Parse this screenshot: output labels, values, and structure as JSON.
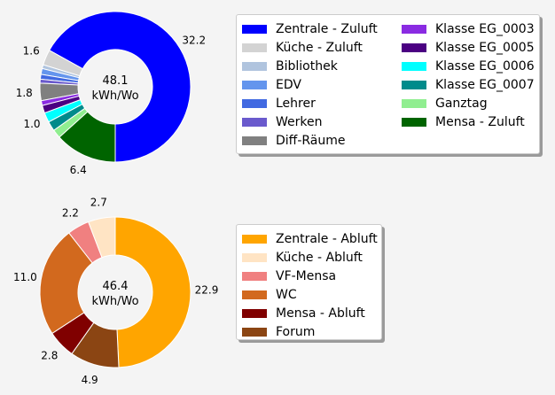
{
  "chart_data": [
    {
      "type": "pie",
      "donut": true,
      "center_value": "48.1",
      "center_unit": "kWh/Wo",
      "start": "bottom",
      "direction": "counterclockwise",
      "slices": [
        {
          "name": "Zentrale - Zuluft",
          "value": 32.2,
          "color": "#0000ff",
          "label": "32.2"
        },
        {
          "name": "Küche - Zuluft",
          "value": 1.6,
          "color": "#d3d3d3",
          "label": "1.6"
        },
        {
          "name": "Bibliothek",
          "value": 0.4,
          "color": "#b0c4de",
          "label": ""
        },
        {
          "name": "EDV",
          "value": 0.6,
          "color": "#6495ed",
          "label": ""
        },
        {
          "name": "Lehrer",
          "value": 0.5,
          "color": "#4169e1",
          "label": ""
        },
        {
          "name": "Werken",
          "value": 0.4,
          "color": "#6a5acd",
          "label": ""
        },
        {
          "name": "Diff-Räume",
          "value": 1.8,
          "color": "#808080",
          "label": "1.8"
        },
        {
          "name": "Klasse EG_0003",
          "value": 0.5,
          "color": "#8a2be2",
          "label": ""
        },
        {
          "name": "Klasse EG_0005",
          "value": 0.8,
          "color": "#4b0082",
          "label": ""
        },
        {
          "name": "Klasse EG_0006",
          "value": 1.0,
          "color": "#00ffff",
          "label": "1.0"
        },
        {
          "name": "Klasse EG_0007",
          "value": 1.0,
          "color": "#008b8b",
          "label": ""
        },
        {
          "name": "Ganztag",
          "value": 0.9,
          "color": "#90ee90",
          "label": ""
        },
        {
          "name": "Mensa - Zuluft",
          "value": 6.4,
          "color": "#006400",
          "label": "6.4"
        }
      ]
    },
    {
      "type": "pie",
      "donut": true,
      "center_value": "46.4",
      "center_unit": "kWh/Wo",
      "start": "top",
      "direction": "clockwise",
      "slices": [
        {
          "name": "Zentrale - Abluft",
          "value": 22.9,
          "color": "#ffa500",
          "label": "22.9"
        },
        {
          "name": "Forum",
          "value": 4.9,
          "color": "#8b4513",
          "label": "4.9"
        },
        {
          "name": "Mensa - Abluft",
          "value": 2.8,
          "color": "#800000",
          "label": "2.8"
        },
        {
          "name": "WC",
          "value": 11.0,
          "color": "#d2691e",
          "label": "11.0"
        },
        {
          "name": "VF-Mensa",
          "value": 2.2,
          "color": "#f08080",
          "label": "2.2"
        },
        {
          "name": "Küche - Abluft",
          "value": 2.7,
          "color": "#ffe4c4",
          "label": "2.7"
        }
      ]
    }
  ],
  "legends": [
    {
      "columns": [
        [
          {
            "label": "Zentrale - Zuluft",
            "color": "#0000ff"
          },
          {
            "label": "Küche - Zuluft",
            "color": "#d3d3d3"
          },
          {
            "label": "Bibliothek",
            "color": "#b0c4de"
          },
          {
            "label": "EDV",
            "color": "#6495ed"
          },
          {
            "label": "Lehrer",
            "color": "#4169e1"
          },
          {
            "label": "Werken",
            "color": "#6a5acd"
          },
          {
            "label": "Diff-Räume",
            "color": "#808080"
          }
        ],
        [
          {
            "label": "Klasse EG_0003",
            "color": "#8a2be2"
          },
          {
            "label": "Klasse EG_0005",
            "color": "#4b0082"
          },
          {
            "label": "Klasse EG_0006",
            "color": "#00ffff"
          },
          {
            "label": "Klasse EG_0007",
            "color": "#008b8b"
          },
          {
            "label": "Ganztag",
            "color": "#90ee90"
          },
          {
            "label": "Mensa - Zuluft",
            "color": "#006400"
          }
        ]
      ]
    },
    {
      "columns": [
        [
          {
            "label": "Zentrale - Abluft",
            "color": "#ffa500"
          },
          {
            "label": "Küche - Abluft",
            "color": "#ffe4c4"
          },
          {
            "label": "VF-Mensa",
            "color": "#f08080"
          },
          {
            "label": "WC",
            "color": "#d2691e"
          },
          {
            "label": "Mensa - Abluft",
            "color": "#800000"
          },
          {
            "label": "Forum",
            "color": "#8b4513"
          }
        ]
      ]
    }
  ]
}
